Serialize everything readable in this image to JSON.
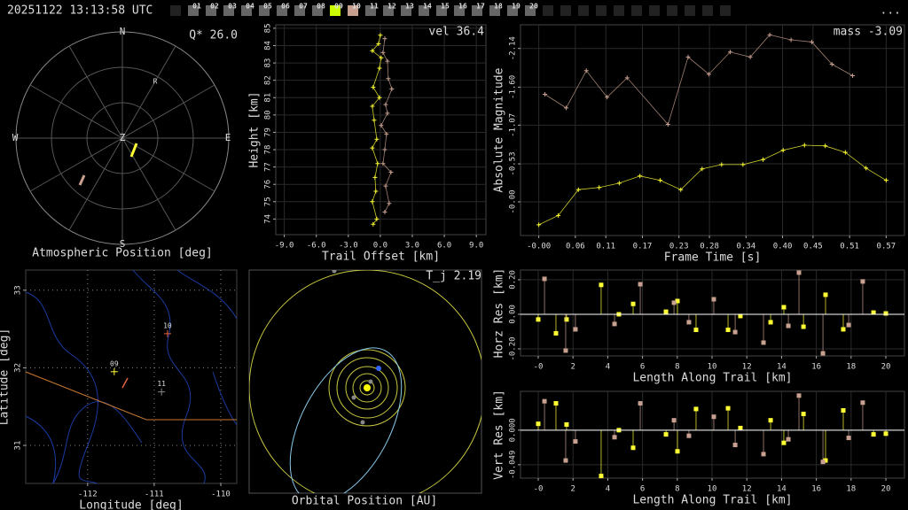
{
  "header": {
    "timestamp": "20251122 13:13:58 UTC",
    "menu": "...",
    "cameras": [
      {
        "label": "01",
        "color": "#666"
      },
      {
        "label": "02",
        "color": "#666"
      },
      {
        "label": "03",
        "color": "#666"
      },
      {
        "label": "04",
        "color": "#666"
      },
      {
        "label": "05",
        "color": "#666"
      },
      {
        "label": "06",
        "color": "#666"
      },
      {
        "label": "07",
        "color": "#666"
      },
      {
        "label": "08",
        "color": "#666"
      },
      {
        "label": "09",
        "color": "#ccff00"
      },
      {
        "label": "10",
        "color": "#c8a090"
      },
      {
        "label": "11",
        "color": "#666"
      },
      {
        "label": "12",
        "color": "#666"
      },
      {
        "label": "13",
        "color": "#666"
      },
      {
        "label": "14",
        "color": "#666"
      },
      {
        "label": "15",
        "color": "#666"
      },
      {
        "label": "16",
        "color": "#666"
      },
      {
        "label": "17",
        "color": "#666"
      },
      {
        "label": "18",
        "color": "#666"
      },
      {
        "label": "19",
        "color": "#666"
      },
      {
        "label": "20",
        "color": "#666"
      }
    ]
  },
  "chart_data": [
    {
      "type": "polar",
      "title": "Atmospheric Position [deg]",
      "annotation": "Q* 26.0",
      "labels": {
        "north": "N",
        "south": "S",
        "east": "E",
        "west": "W",
        "zenith": "Z",
        "radiant": "R"
      }
    },
    {
      "type": "line",
      "annotation": "vel 36.4",
      "xlabel": "Trail Offset [km]",
      "ylabel": "Height [km]",
      "grid": true,
      "xlim": [
        -9.8,
        9.9
      ],
      "ylim": [
        73.1,
        85.2
      ],
      "xticks": [
        {
          "value": -9,
          "label": "-9.0"
        },
        {
          "value": -6,
          "label": "-6.0"
        },
        {
          "value": -3,
          "label": "-3.0"
        },
        {
          "value": 0,
          "label": "0.0"
        },
        {
          "value": 3,
          "label": "3.0"
        },
        {
          "value": 6,
          "label": "6.0"
        },
        {
          "value": 9,
          "label": "9.0"
        }
      ],
      "yticks": [
        74,
        75,
        76,
        77,
        78,
        79,
        80,
        81,
        82,
        83,
        84,
        85
      ],
      "series": [
        {
          "color": "#ffff33",
          "x": [
            0,
            -0.17,
            -0.75,
            0.08,
            -0.08,
            -0.67,
            -0.08,
            -0.75,
            -0.58,
            -0.33,
            -0.75,
            -0.25,
            -0.5,
            -0.42,
            -0.75,
            -0.33,
            -0.67
          ],
          "values": [
            84.6,
            84.1,
            83.7,
            83.3,
            82.7,
            81.6,
            81.0,
            80.5,
            79.7,
            78.6,
            78.1,
            77.2,
            76.4,
            75.6,
            75.0,
            74.0,
            73.7
          ]
        },
        {
          "color": "#c8a090",
          "x": [
            0.42,
            0.25,
            0.67,
            0.75,
            1.08,
            0.5,
            0.67,
            0.08,
            0.58,
            0.42,
            0.25,
            1.0,
            0.5,
            0.83,
            0.42
          ],
          "values": [
            84.4,
            83.6,
            83.1,
            82.1,
            81.5,
            80.6,
            80.1,
            79.4,
            78.9,
            78.0,
            77.2,
            76.7,
            75.9,
            74.9,
            74.4
          ]
        }
      ]
    },
    {
      "type": "line",
      "annotation": "mass -3.09",
      "xlabel": "Frame Time [s]",
      "ylabel": "Absolute Magnitude",
      "grid": true,
      "xlim": [
        -0.03,
        0.6
      ],
      "ylim": [
        0.47,
        -2.47
      ],
      "xticks": [
        {
          "value": 0,
          "label": "-0.00"
        },
        0.06,
        0.11,
        0.17,
        0.23,
        0.28,
        0.34,
        {
          "value": 0.4,
          "label": "0.40"
        },
        0.45,
        0.51,
        0.57
      ],
      "yticks": [
        -2.14,
        {
          "value": -1.6,
          "label": "-1.60"
        },
        -1.07,
        -0.53,
        {
          "value": 0,
          "label": "-0.00"
        }
      ],
      "series": [
        {
          "color": "#c8a090",
          "x": [
            0.01,
            0.045,
            0.078,
            0.112,
            0.145,
            0.212,
            0.245,
            0.279,
            0.314,
            0.347,
            0.379,
            0.414,
            0.448,
            0.481,
            0.515
          ],
          "values": [
            -1.5,
            -1.31,
            -1.83,
            -1.46,
            -1.73,
            -1.08,
            -2.02,
            -1.78,
            -2.09,
            -2.02,
            -2.33,
            -2.26,
            -2.23,
            -1.92,
            -1.76
          ]
        },
        {
          "color": "#ffff33",
          "x": [
            0,
            0.032,
            0.065,
            0.099,
            0.132,
            0.166,
            0.199,
            0.233,
            0.268,
            0.3,
            0.335,
            0.368,
            0.401,
            0.436,
            0.47,
            0.503,
            0.537,
            0.57
          ],
          "values": [
            0.32,
            0.19,
            -0.17,
            -0.2,
            -0.26,
            -0.36,
            -0.3,
            -0.17,
            -0.46,
            -0.52,
            -0.52,
            -0.59,
            -0.72,
            -0.79,
            -0.78,
            -0.69,
            -0.47,
            -0.3
          ]
        }
      ]
    },
    {
      "type": "map",
      "xlabel": "Longitude [deg]",
      "ylabel": "Latitude [deg]",
      "xlim": [
        -112.93,
        -109.76
      ],
      "ylim": [
        30.51,
        33.26
      ],
      "xticks": [
        -112,
        -111,
        -110
      ],
      "yticks": [
        31,
        32,
        33
      ],
      "stations": [
        {
          "label": "09",
          "lon": -111.6,
          "lat": 31.95,
          "color": "#ffff33"
        },
        {
          "label": "10",
          "lon": -110.8,
          "lat": 32.44,
          "color": "#e06040"
        },
        {
          "label": "11",
          "lon": -110.89,
          "lat": 31.69,
          "color": "#888"
        }
      ]
    },
    {
      "type": "orbit",
      "title": "Orbital Position [AU]",
      "annotation": "T_j 2.19"
    },
    {
      "type": "stem",
      "xlabel": "Length Along Trail [km]",
      "ylabel": "Horz Res [km]",
      "grid": true,
      "xlim": [
        -1.02,
        21.07
      ],
      "ylim": [
        -0.241,
        0.256
      ],
      "xticks": [
        {
          "value": 0,
          "label": "-0"
        },
        2,
        4,
        6,
        8,
        10,
        12,
        14,
        16,
        18,
        20
      ],
      "yticks": [
        {
          "value": 0.2,
          "label": "0.20"
        },
        {
          "value": 0,
          "label": "0.00"
        },
        {
          "value": -0.2,
          "label": "-0.20"
        }
      ],
      "series": [
        {
          "color": "#ffff33",
          "x": [
            0,
            1.02,
            1.63,
            3.62,
            4.64,
            5.46,
            7.35,
            8.01,
            9.08,
            10.92,
            11.63,
            13.37,
            14.13,
            15.26,
            16.53,
            17.55,
            19.29,
            20
          ],
          "values": [
            -0.03,
            -0.11,
            -0.03,
            0.17,
            0,
            0.06,
            0.015,
            0.077,
            -0.09,
            -0.09,
            -0.01,
            -0.046,
            0.041,
            -0.072,
            0.113,
            -0.087,
            0.01,
            0.005
          ]
        },
        {
          "color": "#c8a090",
          "x": [
            0.36,
            1.58,
            2.14,
            4.39,
            5.87,
            7.81,
            8.67,
            10.1,
            11.33,
            12.96,
            14.39,
            15.0,
            16.38,
            17.86,
            18.67
          ],
          "values": [
            0.205,
            -0.21,
            -0.087,
            -0.056,
            0.174,
            0.067,
            -0.046,
            0.087,
            -0.103,
            -0.164,
            -0.067,
            0.241,
            -0.226,
            -0.062,
            0.19
          ]
        }
      ]
    },
    {
      "type": "stem",
      "xlabel": "Length Along Trail [km]",
      "ylabel": "Vert Res [km]",
      "grid": true,
      "xlim": [
        -1.02,
        21.07
      ],
      "ylim": [
        -0.068,
        0.055
      ],
      "xticks": [
        {
          "value": 0,
          "label": "-0"
        },
        2,
        4,
        6,
        8,
        10,
        12,
        14,
        16,
        18,
        20
      ],
      "yticks": [
        {
          "value": 0,
          "label": "0.000"
        },
        -0.049
      ],
      "series": [
        {
          "color": "#ffff33",
          "x": [
            0,
            1.02,
            1.63,
            3.62,
            4.64,
            5.46,
            7.35,
            8.01,
            9.08,
            10.92,
            11.63,
            13.37,
            14.13,
            15.26,
            16.53,
            17.55,
            19.29,
            20
          ],
          "values": [
            0.009,
            0.038,
            0.008,
            -0.065,
            0,
            -0.025,
            -0.006,
            -0.03,
            0.03,
            0.031,
            0.003,
            0.014,
            -0.018,
            0.023,
            -0.043,
            0.028,
            -0.006,
            -0.005
          ]
        },
        {
          "color": "#c8a090",
          "x": [
            0.36,
            1.58,
            2.14,
            4.39,
            5.87,
            7.81,
            8.67,
            10.1,
            11.33,
            12.96,
            14.39,
            15.0,
            16.38,
            17.86,
            18.67
          ],
          "values": [
            0.041,
            -0.043,
            -0.016,
            -0.01,
            0.038,
            0.014,
            -0.008,
            0.019,
            -0.021,
            -0.034,
            -0.013,
            0.049,
            -0.045,
            -0.011,
            0.039
          ]
        }
      ]
    }
  ]
}
